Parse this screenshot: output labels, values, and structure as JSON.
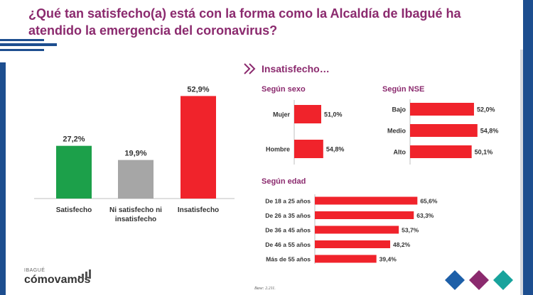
{
  "title": "¿Qué tan satisfecho(a) está con la forma como la Alcaldía de Ibagué ha atendido la emergencia del coronavirus?",
  "section_heading": "Insatisfecho…",
  "subsections": {
    "sexo": "Según sexo",
    "nse": "Según NSE",
    "edad": "Según edad"
  },
  "logo": {
    "small": "IBAGUÉ",
    "big": "cómovamos"
  },
  "base_note": "Base: 2.211.",
  "colors": {
    "title": "#8b2a6e",
    "bar_green": "#1ca04a",
    "bar_grey": "#a6a6a6",
    "bar_red": "#f0232b",
    "brand_blue": "#1d4e8f",
    "diamond_blue": "#1d5fa8",
    "diamond_purple": "#8b2a6e",
    "diamond_teal": "#18a39c"
  },
  "chart_data": [
    {
      "type": "bar",
      "id": "main",
      "categories": [
        "Satisfecho",
        "Ni satisfecho ni insatisfecho",
        "Insatisfecho"
      ],
      "labels": [
        "27,2%",
        "19,9%",
        "52,9%"
      ],
      "values": [
        27.2,
        19.9,
        52.9
      ],
      "colors": [
        "#1ca04a",
        "#a6a6a6",
        "#f0232b"
      ],
      "ylim": [
        0,
        60
      ]
    },
    {
      "type": "bar",
      "orientation": "horizontal",
      "id": "sexo",
      "title": "Según sexo",
      "categories": [
        "Mujer",
        "Hombre"
      ],
      "labels": [
        "51,0%",
        "54,8%"
      ],
      "values": [
        51.0,
        54.8
      ]
    },
    {
      "type": "bar",
      "orientation": "horizontal",
      "id": "nse",
      "title": "Según NSE",
      "categories": [
        "Bajo",
        "Medio",
        "Alto"
      ],
      "labels": [
        "52,0%",
        "54,8%",
        "50,1%"
      ],
      "values": [
        52.0,
        54.8,
        50.1
      ]
    },
    {
      "type": "bar",
      "orientation": "horizontal",
      "id": "edad",
      "title": "Según edad",
      "categories": [
        "De 18 a 25 años",
        "De 26 a 35 años",
        "De 36 a 45 años",
        "De 46 a 55 años",
        "Más de 55 años"
      ],
      "labels": [
        "65,6%",
        "63,3%",
        "53,7%",
        "48,2%",
        "39,4%"
      ],
      "values": [
        65.6,
        63.3,
        53.7,
        48.2,
        39.4
      ]
    }
  ]
}
